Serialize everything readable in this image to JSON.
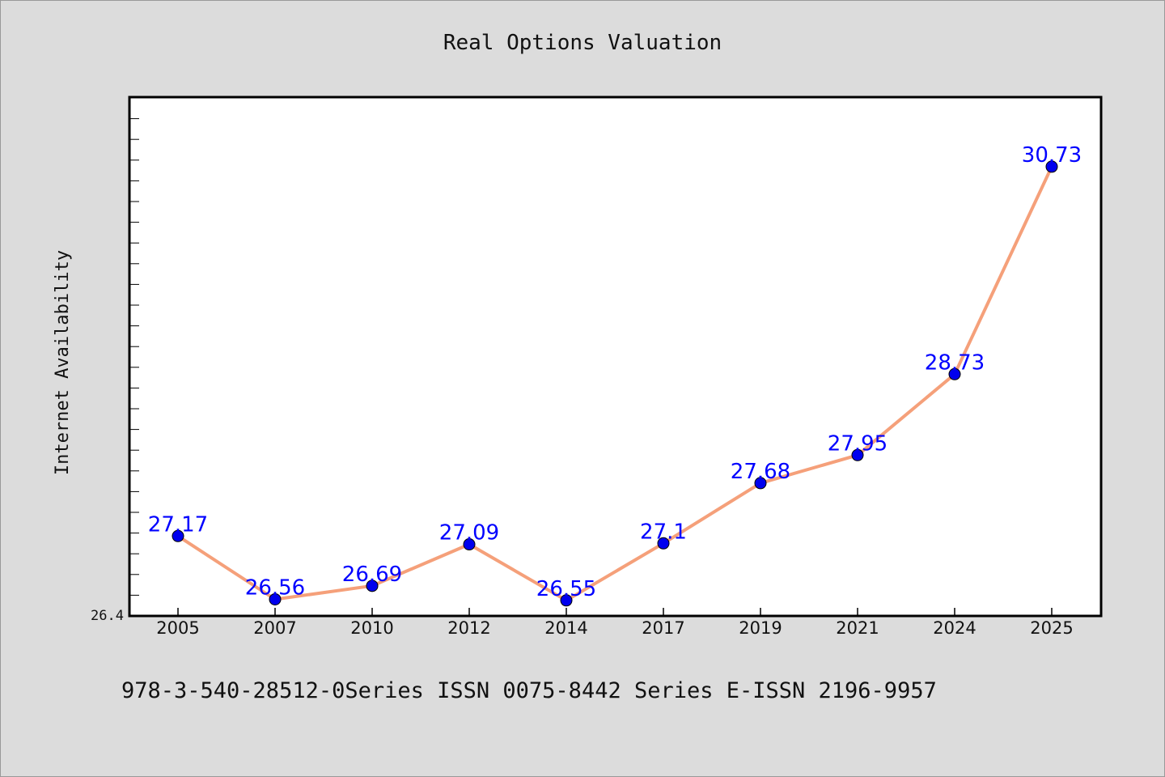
{
  "chart_data": {
    "type": "line",
    "title": "Real Options Valuation",
    "xlabel": "",
    "ylabel": "Internet Availability",
    "categories": [
      "2005",
      "2007",
      "2010",
      "2012",
      "2014",
      "2017",
      "2019",
      "2021",
      "2024",
      "2025"
    ],
    "series": [
      {
        "values": [
          27.17,
          26.56,
          26.69,
          27.09,
          26.55,
          27.1,
          27.68,
          27.95,
          28.73,
          30.73
        ],
        "labels": [
          "27.17",
          "26.56",
          "26.69",
          "27.09",
          "26.55",
          "27.1",
          "27.68",
          "27.95",
          "28.73",
          "30.73"
        ]
      }
    ],
    "ylim": [
      26.4,
      31.4
    ],
    "yticks": [
      "26.4"
    ],
    "grid": false,
    "colors": {
      "line": "#f5a07a",
      "marker": "#0000ee",
      "labels": "#0000ff",
      "background": "#dcdcdc",
      "plot_background": "#ffffff"
    }
  },
  "footer": {
    "text": "978-3-540-28512-0Series ISSN 0075-8442 Series E-ISSN 2196-9957"
  }
}
